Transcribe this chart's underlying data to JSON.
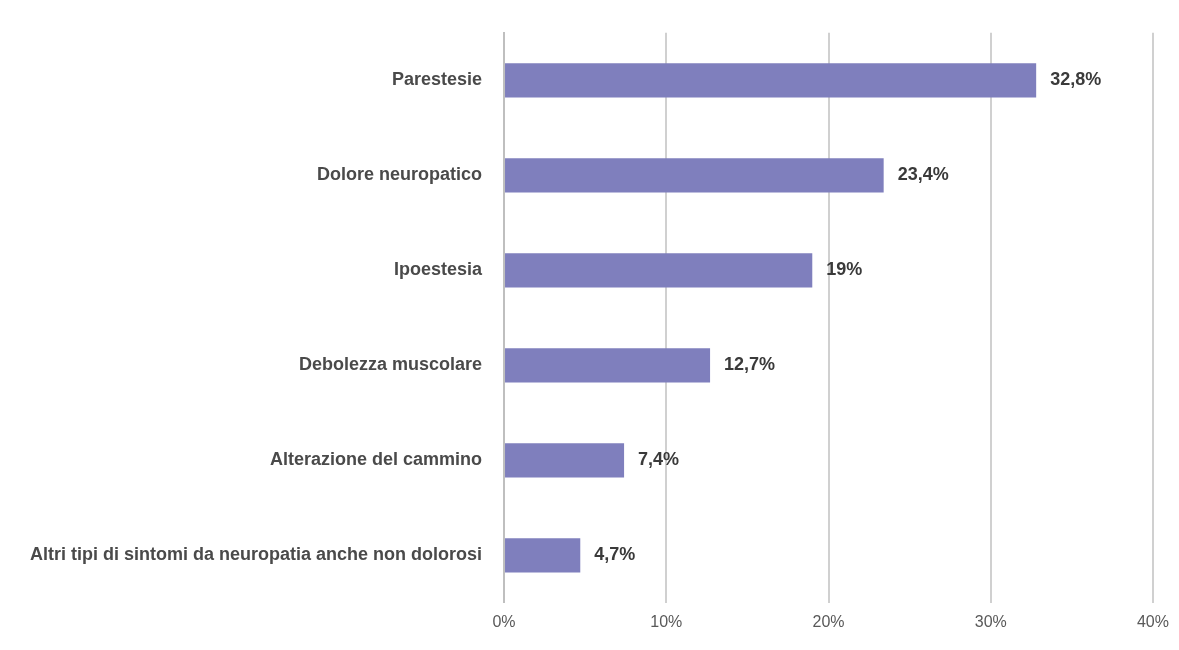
{
  "chart_data": {
    "type": "bar",
    "orientation": "horizontal",
    "categories": [
      "Parestesie",
      "Dolore neuropatico",
      "Ipoestesia",
      "Debolezza muscolare",
      "Alterazione del cammino",
      "Altri tipi di sintomi da neuropatia anche non dolorosi"
    ],
    "values": [
      32.8,
      23.4,
      19,
      12.7,
      7.4,
      4.7
    ],
    "value_labels": [
      "32,8%",
      "23,4%",
      "19%",
      "12,7%",
      "7,4%",
      "4,7%"
    ],
    "color": "#7f7fbd",
    "xlim": [
      0,
      40
    ],
    "xticks": [
      {
        "value": 0,
        "label": "0%"
      },
      {
        "value": 10,
        "label": "10%"
      },
      {
        "value": 20,
        "label": "20%"
      },
      {
        "value": 30,
        "label": "30%"
      },
      {
        "value": 40,
        "label": "40%"
      }
    ],
    "grid": "x",
    "legend": false
  }
}
